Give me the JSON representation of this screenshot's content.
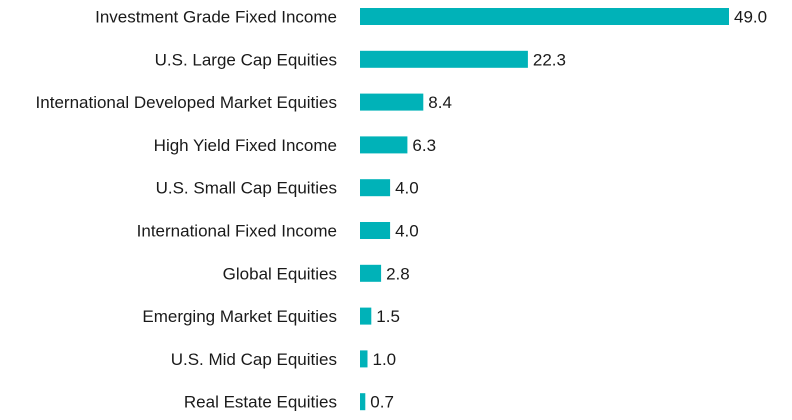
{
  "chart_data": {
    "type": "bar",
    "orientation": "horizontal",
    "title": "",
    "xlabel": "",
    "ylabel": "",
    "categories": [
      "Investment Grade Fixed Income",
      "U.S. Large Cap Equities",
      "International Developed Market Equities",
      "High Yield Fixed Income",
      "U.S. Small Cap Equities",
      "International Fixed Income",
      "Global Equities",
      "Emerging Market Equities",
      "U.S. Mid Cap Equities",
      "Real Estate Equities"
    ],
    "values": [
      49.0,
      22.3,
      8.4,
      6.3,
      4.0,
      4.0,
      2.8,
      1.5,
      1.0,
      0.7
    ],
    "value_labels": [
      "49.0",
      "22.3",
      "8.4",
      "6.3",
      "4.0",
      "4.0",
      "2.8",
      "1.5",
      "1.0",
      "0.7"
    ],
    "xlim": [
      0,
      49.0
    ],
    "grid": false,
    "legend": "none",
    "bar_color": "#00b2b8"
  }
}
